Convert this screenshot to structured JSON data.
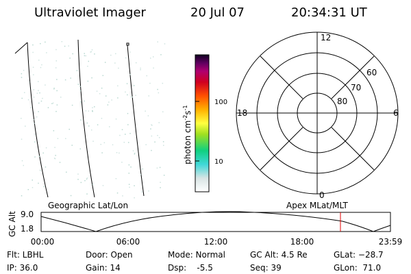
{
  "header": {
    "instrument": "Ultraviolet Imager",
    "date": "20 Jul 07",
    "time": "20:34:31 UT"
  },
  "colorbar": {
    "label": {
      "base": "photon cm",
      "exp1": "-2",
      "unit": "s",
      "exp2": "-1"
    },
    "ticks": [
      "100",
      "10"
    ]
  },
  "polar": {
    "mlt_labels": [
      "12",
      "6",
      "0",
      "18"
    ],
    "lat_labels": [
      "60",
      "70",
      "80"
    ]
  },
  "panel_labels": {
    "left": "Geographic Lat/Lon",
    "right": "Apex MLat/MLT"
  },
  "altitude": {
    "axis_label": "GC Alt",
    "ticks": [
      "9.0",
      "1.8"
    ],
    "time_ticks": [
      "00:00",
      "06:00",
      "12:00",
      "18:00",
      "23:59"
    ]
  },
  "footer": {
    "rows": [
      [
        "Flt: LBHL",
        "Door: Open",
        "Mode: Normal",
        "GC Alt: 4.5 Re",
        "GLat: −28.7"
      ],
      [
        "IP: 36.0",
        "Gain: 14",
        "Dsp:    -5.5",
        "Seq: 39",
        "GLon:  71.0"
      ]
    ]
  }
}
